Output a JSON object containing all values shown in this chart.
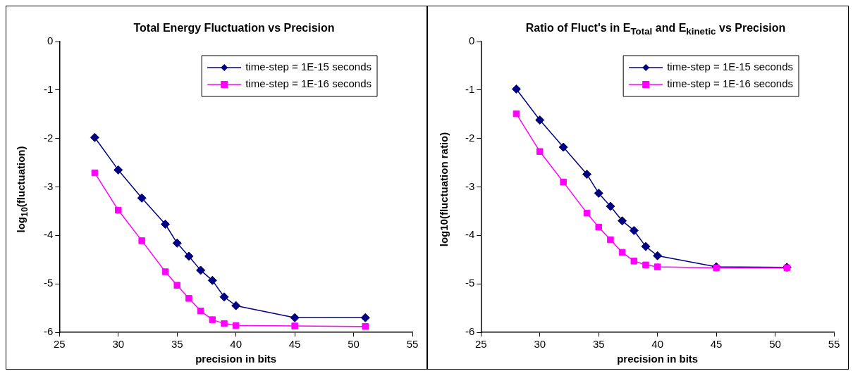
{
  "chart_data": [
    {
      "type": "line",
      "title": "Total Energy Fluctuation vs Precision",
      "xlabel": "precision in bits",
      "ylabel": "log$_{10}$(fluctuation)",
      "x": [
        28,
        30,
        32,
        34,
        35,
        36,
        37,
        38,
        39,
        40,
        45,
        51
      ],
      "series": [
        {
          "name": "time-step = 1E-15 seconds",
          "color": "#000080",
          "marker": "diamond",
          "values": [
            -1.98,
            -2.65,
            -3.23,
            -3.77,
            -4.16,
            -4.43,
            -4.72,
            -4.93,
            -5.27,
            -5.45,
            -5.7,
            -5.7
          ]
        },
        {
          "name": "time-step = 1E-16 seconds",
          "color": "#ff00ff",
          "marker": "square",
          "values": [
            -2.71,
            -3.48,
            -4.11,
            -4.75,
            -5.03,
            -5.3,
            -5.56,
            -5.74,
            -5.82,
            -5.86,
            -5.87,
            -5.88
          ]
        }
      ],
      "xlim": [
        25,
        55
      ],
      "xticks": [
        25,
        30,
        35,
        40,
        45,
        50,
        55
      ],
      "ylim": [
        -6,
        0
      ],
      "yticks": [
        -6,
        -5,
        -4,
        -3,
        -2,
        -1,
        0
      ],
      "grid": false,
      "legend": "top right",
      "line_style": "solid"
    },
    {
      "type": "line",
      "title": "Ratio of Fluct's in E$_{Total}$ and E$_{kinetic}$ vs Precision",
      "xlabel": "precision in bits",
      "ylabel": "log10(fluctuation ratio)",
      "x": [
        28,
        30,
        32,
        34,
        35,
        36,
        37,
        38,
        39,
        40,
        45,
        51
      ],
      "series": [
        {
          "name": "time-step = 1E-15 seconds",
          "color": "#000080",
          "marker": "diamond",
          "values": [
            -0.98,
            -1.62,
            -2.18,
            -2.74,
            -3.13,
            -3.4,
            -3.7,
            -3.9,
            -4.23,
            -4.42,
            -4.65,
            -4.66
          ]
        },
        {
          "name": "time-step = 1E-16 seconds",
          "color": "#ff00ff",
          "marker": "square",
          "values": [
            -1.49,
            -2.27,
            -2.9,
            -3.54,
            -3.83,
            -4.09,
            -4.35,
            -4.53,
            -4.61,
            -4.65,
            -4.67,
            -4.67
          ]
        }
      ],
      "xlim": [
        25,
        55
      ],
      "xticks": [
        25,
        30,
        35,
        40,
        45,
        50,
        55
      ],
      "ylim": [
        -6,
        0
      ],
      "yticks": [
        -6,
        -5,
        -4,
        -3,
        -2,
        -1,
        0
      ],
      "grid": false,
      "legend": "top right",
      "line_style": "solid"
    }
  ]
}
